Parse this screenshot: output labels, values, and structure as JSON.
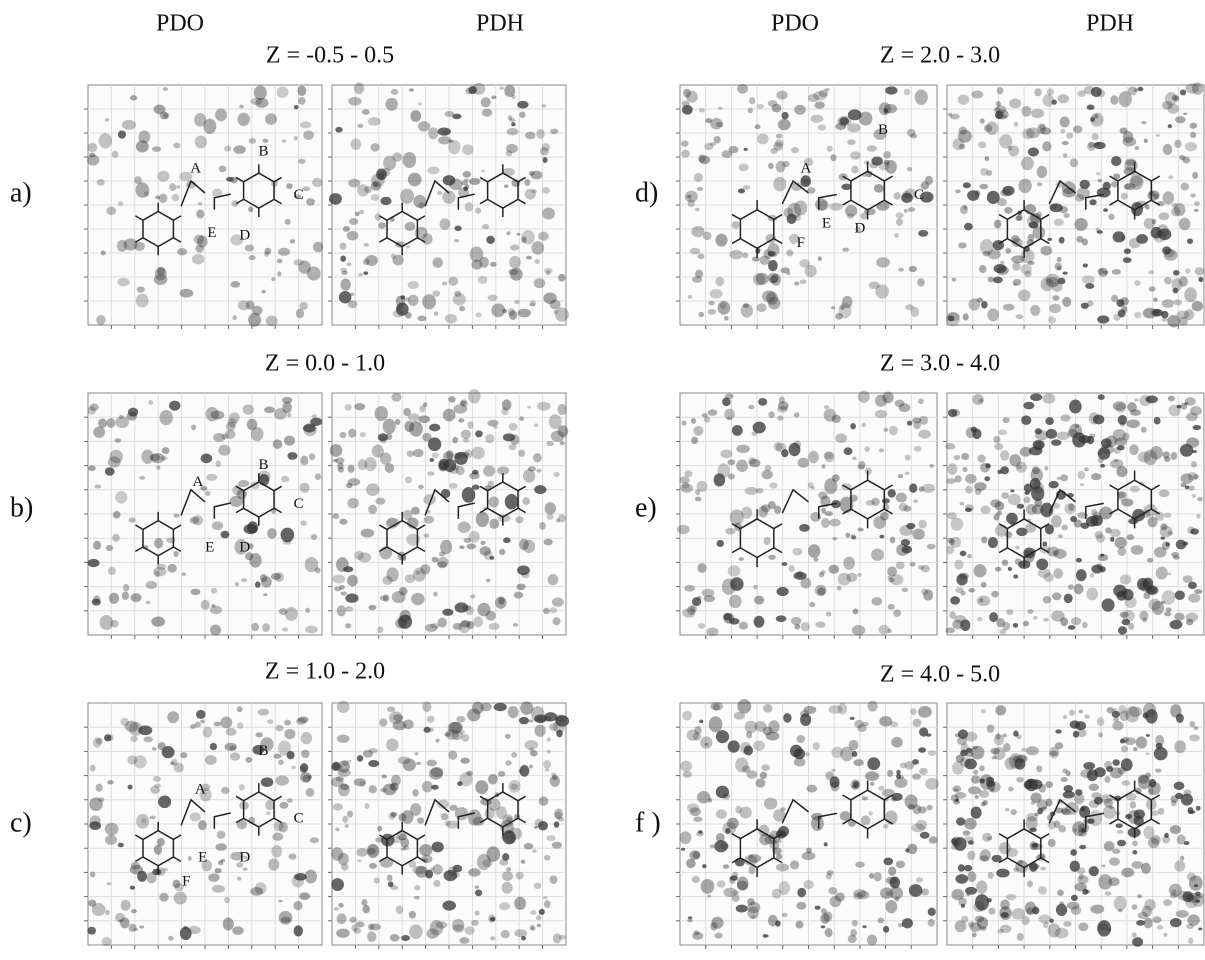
{
  "columns": [
    "PDO",
    "PDH",
    "PDO",
    "PDH"
  ],
  "panels": [
    {
      "label": "a)",
      "z_range": "Z = -0.5 - 0.5",
      "atoms": [
        "A",
        "B",
        "C",
        "D",
        "E"
      ]
    },
    {
      "label": "b)",
      "z_range": "Z = 0.0 - 1.0",
      "atoms": [
        "A",
        "B",
        "C",
        "D",
        "E"
      ]
    },
    {
      "label": "c)",
      "z_range": "Z = 1.0 - 2.0",
      "atoms": [
        "A",
        "B",
        "C",
        "D",
        "E",
        "F"
      ]
    },
    {
      "label": "d)",
      "z_range": "Z = 2.0 - 3.0",
      "atoms": [
        "A",
        "B",
        "C",
        "D",
        "E",
        "F"
      ]
    },
    {
      "label": "e)",
      "z_range": "Z = 3.0 - 4.0",
      "atoms": []
    },
    {
      "label": "f )",
      "z_range": "Z = 4.0 - 5.0",
      "atoms": []
    }
  ]
}
